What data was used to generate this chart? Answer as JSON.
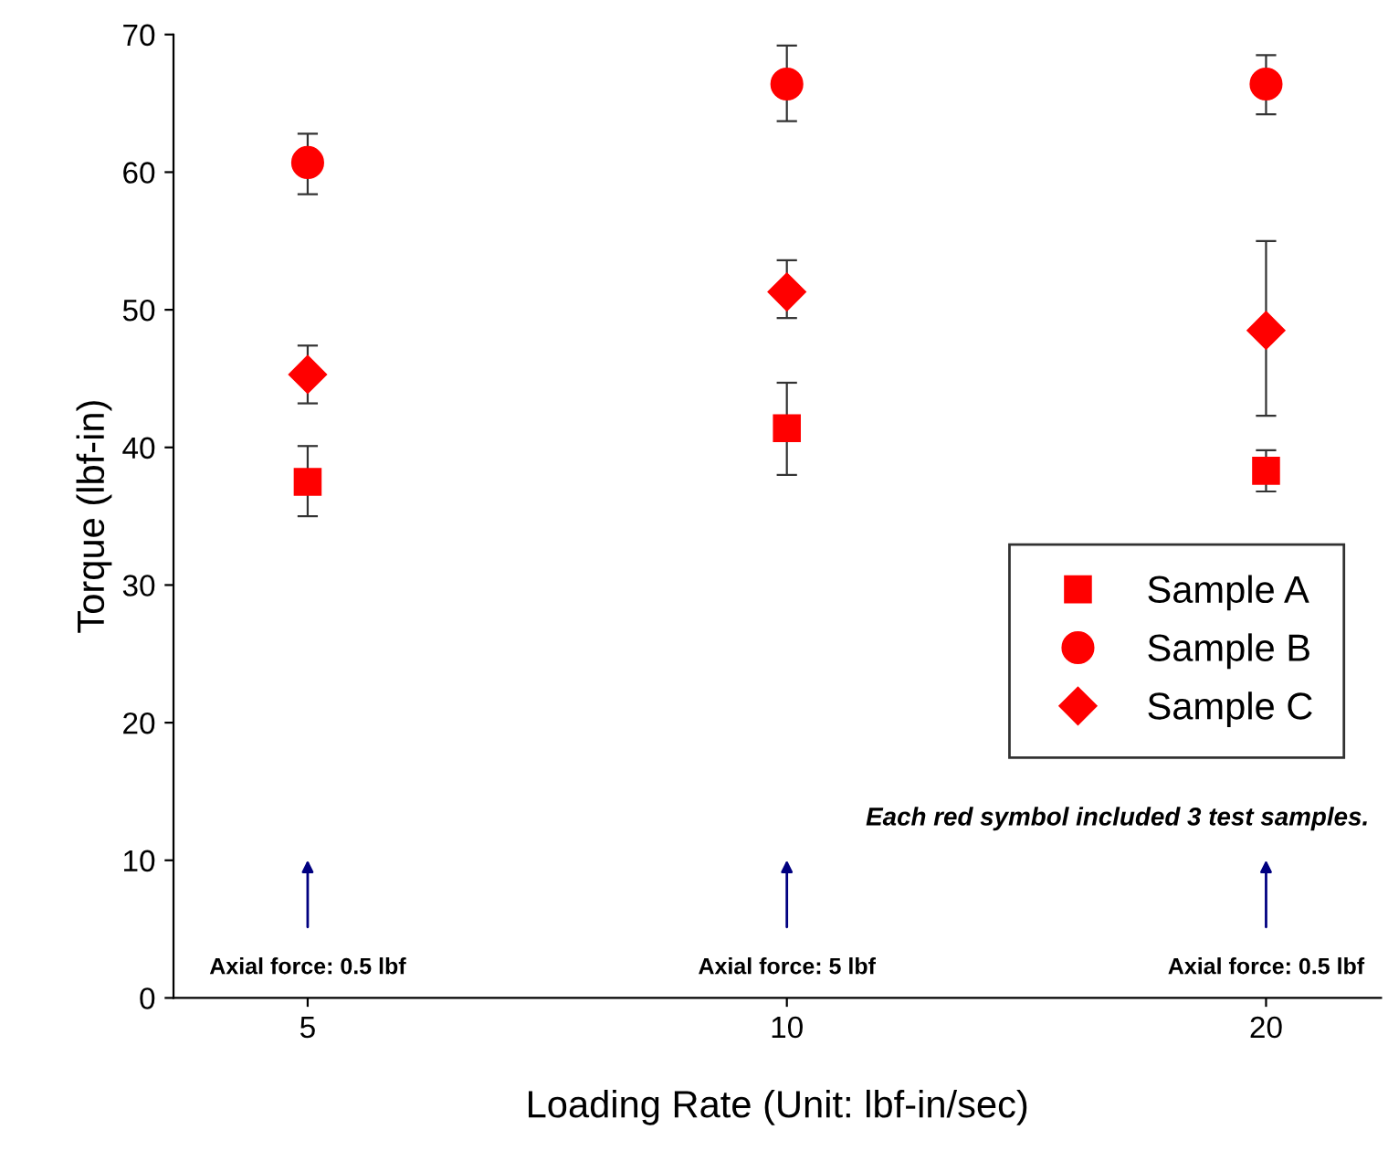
{
  "chart_data": {
    "type": "scatter",
    "xlabel": "Loading Rate (Unit: lbf-in/sec)",
    "ylabel": "Torque (lbf-in)",
    "categories": [
      "5",
      "10",
      "20"
    ],
    "series": [
      {
        "name": "Sample A",
        "color": "#ff0000",
        "marker": "square",
        "values": [
          37.5,
          41.4,
          38.3
        ],
        "errors": [
          [
            35.0,
            40.1
          ],
          [
            38.0,
            44.7
          ],
          [
            36.8,
            39.8
          ]
        ]
      },
      {
        "name": "Sample B",
        "color": "#ff0000",
        "marker": "circle",
        "values": [
          60.7,
          66.4,
          66.4
        ],
        "errors": [
          [
            58.4,
            62.8
          ],
          [
            63.7,
            69.2
          ],
          [
            64.2,
            68.5
          ]
        ]
      },
      {
        "name": "Sample C",
        "color": "#ff0000",
        "marker": "diamond",
        "values": [
          45.3,
          51.3,
          48.5
        ],
        "errors": [
          [
            43.2,
            47.4
          ],
          [
            49.4,
            53.6
          ],
          [
            42.3,
            55.0
          ]
        ]
      }
    ],
    "ylim": [
      0,
      70
    ],
    "yticks": [
      0,
      10,
      20,
      30,
      40,
      50,
      60,
      70
    ],
    "grid": false,
    "legend": "right",
    "annotations": [
      "Axial force: 0.5 lbf",
      "Axial force: 5 lbf",
      "Axial force: 0.5 lbf",
      "Each red symbol included 3 test samples."
    ]
  }
}
